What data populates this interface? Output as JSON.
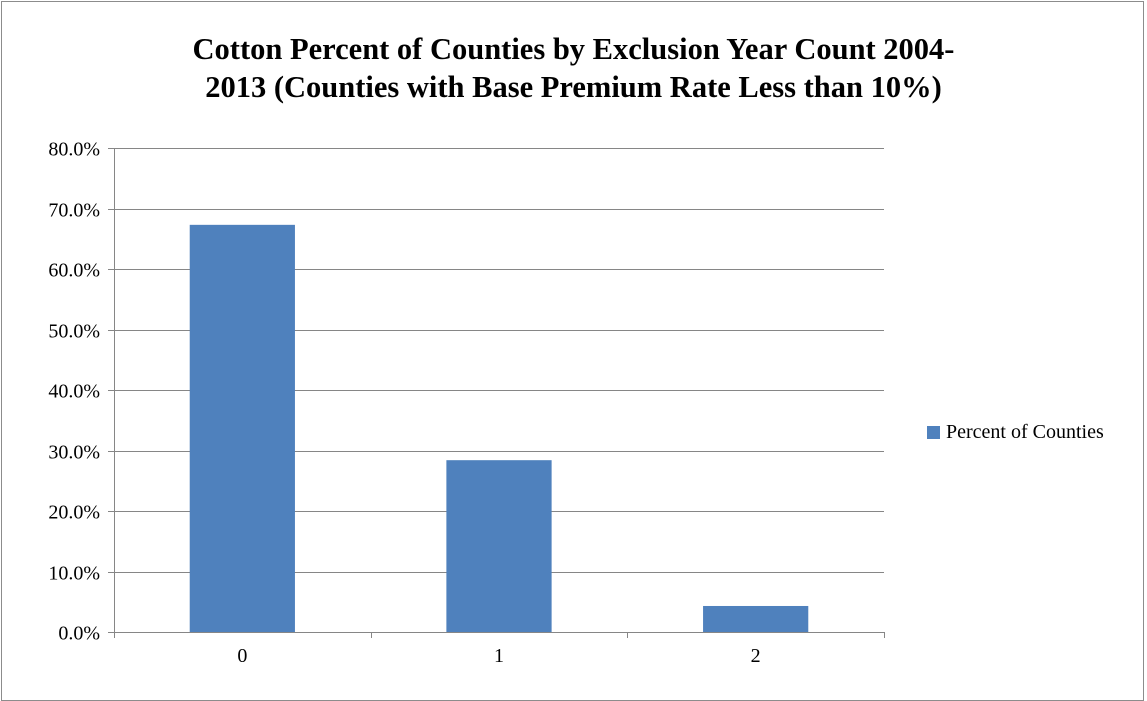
{
  "chart_data": {
    "type": "bar",
    "title_lines": [
      "Cotton Percent of Counties by Exclusion Year Count 2004-",
      "2013 (Counties with Base Premium Rate Less than 10%)"
    ],
    "categories": [
      "0",
      "1",
      "2"
    ],
    "series": [
      {
        "name": "Percent of Counties",
        "values": [
          67.3,
          28.4,
          4.3
        ],
        "color": "#4f81bd"
      }
    ],
    "xlabel": "",
    "ylabel": "",
    "ylim": [
      0,
      80
    ],
    "y_ticks": [
      0,
      10,
      20,
      30,
      40,
      50,
      60,
      70,
      80
    ],
    "y_tick_labels": [
      "0.0%",
      "10.0%",
      "20.0%",
      "30.0%",
      "40.0%",
      "50.0%",
      "60.0%",
      "70.0%",
      "80.0%"
    ],
    "grid": true,
    "legend_position": "right"
  }
}
